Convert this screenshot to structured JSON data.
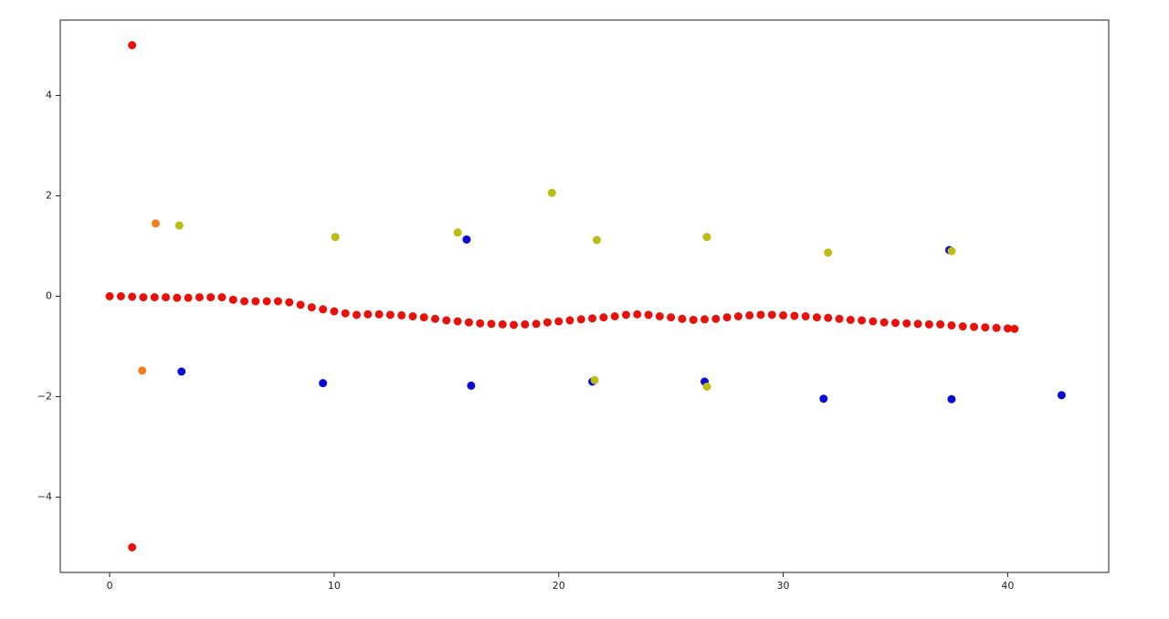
{
  "chart_data": {
    "type": "scatter",
    "xlim": [
      -2.2,
      44.5
    ],
    "ylim": [
      -5.5,
      5.5
    ],
    "xticks": [
      0,
      10,
      20,
      30,
      40
    ],
    "yticks": [
      {
        "value": -4,
        "label": "−4"
      },
      {
        "value": -2,
        "label": "−2"
      },
      0,
      2,
      4
    ],
    "series": [
      {
        "color": "#e8120c",
        "x": [
          0,
          0.5,
          1,
          1.5,
          2,
          2.5,
          3,
          3.5,
          4,
          4.5,
          5,
          5.5,
          6,
          6.5,
          7,
          7.5,
          8,
          8.5,
          9,
          9.5,
          10,
          10.5,
          11,
          11.5,
          12,
          12.5,
          13,
          13.5,
          14,
          14.5,
          15,
          15.5,
          16,
          16.5,
          17,
          17.5,
          18,
          18.5,
          19,
          19.5,
          20,
          20.5,
          21,
          21.5,
          22,
          22.5,
          23,
          23.5,
          24,
          24.5,
          25,
          25.5,
          26,
          26.5,
          27,
          27.5,
          28,
          28.5,
          29,
          29.5,
          30,
          30.5,
          31,
          31.5,
          32,
          32.5,
          33,
          33.5,
          34,
          34.5,
          35,
          35.5,
          36,
          36.5,
          37,
          37.5,
          38,
          38.5,
          39,
          39.5,
          40,
          40.3,
          1,
          1
        ],
        "values": [
          0,
          0,
          -0.01,
          -0.02,
          -0.02,
          -0.02,
          -0.03,
          -0.03,
          -0.02,
          -0.02,
          -0.02,
          -0.07,
          -0.1,
          -0.1,
          -0.1,
          -0.1,
          -0.12,
          -0.17,
          -0.22,
          -0.26,
          -0.3,
          -0.34,
          -0.37,
          -0.36,
          -0.36,
          -0.37,
          -0.38,
          -0.4,
          -0.42,
          -0.45,
          -0.48,
          -0.5,
          -0.52,
          -0.54,
          -0.55,
          -0.56,
          -0.57,
          -0.56,
          -0.55,
          -0.52,
          -0.5,
          -0.48,
          -0.46,
          -0.44,
          -0.42,
          -0.4,
          -0.37,
          -0.36,
          -0.37,
          -0.4,
          -0.42,
          -0.45,
          -0.47,
          -0.46,
          -0.45,
          -0.42,
          -0.4,
          -0.38,
          -0.37,
          -0.37,
          -0.38,
          -0.39,
          -0.4,
          -0.42,
          -0.43,
          -0.45,
          -0.47,
          -0.48,
          -0.5,
          -0.52,
          -0.53,
          -0.54,
          -0.55,
          -0.56,
          -0.56,
          -0.58,
          -0.6,
          -0.61,
          -0.62,
          -0.63,
          -0.64,
          -0.65,
          5,
          -5
        ]
      },
      {
        "color": "#f07f1c",
        "x": [
          2.05,
          1.45
        ],
        "values": [
          1.45,
          -1.48
        ]
      },
      {
        "color": "#0a0ad2",
        "x": [
          3.2,
          9.5,
          15.9,
          16.1,
          21.5,
          26.5,
          31.8,
          37.4,
          37.5,
          42.4
        ],
        "values": [
          -1.5,
          -1.73,
          1.13,
          -1.78,
          -1.7,
          -1.7,
          -2.04,
          0.92,
          -2.05,
          -1.97
        ]
      },
      {
        "color": "#bcbc12",
        "x": [
          3.1,
          10.05,
          15.5,
          19.7,
          21.7,
          26.6,
          32.0,
          37.5,
          21.6,
          26.6
        ],
        "values": [
          1.41,
          1.18,
          1.27,
          2.06,
          1.12,
          1.18,
          0.87,
          0.9,
          -1.67,
          -1.8
        ]
      }
    ]
  }
}
